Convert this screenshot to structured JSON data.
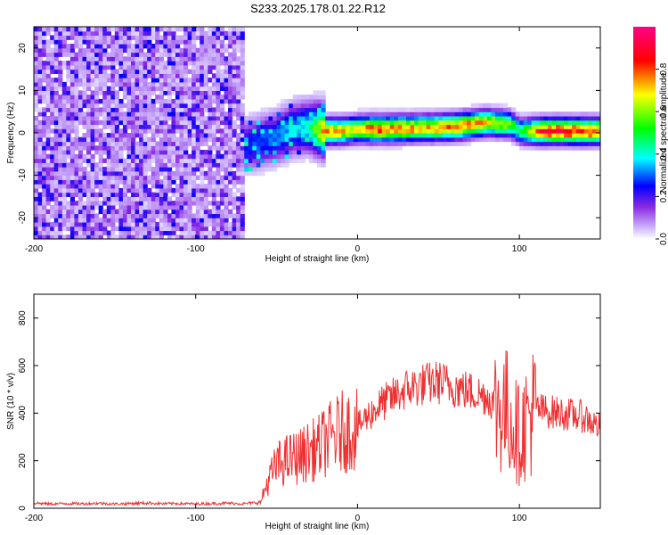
{
  "figure_title": "S233.2025.178.01.22.R12",
  "chart_data": [
    {
      "type": "heatmap",
      "title": "S233.2025.178.01.22.R12",
      "xlabel": "Height of straight line (km)",
      "ylabel": "Frequency (Hz)",
      "xlim": [
        -200,
        150
      ],
      "ylim": [
        -25,
        25
      ],
      "xticks": [
        -200,
        -100,
        0,
        100
      ],
      "yticks": [
        -20,
        -10,
        0,
        10,
        20
      ],
      "colorbar": {
        "label": "Normalized spectral amplitude",
        "range": [
          0,
          1
        ],
        "ticks": [
          0.0,
          0.2,
          0.4,
          0.6,
          0.8
        ],
        "tick_labels": [
          "0.0",
          "0.2",
          "0.4",
          "0.6",
          "0.8"
        ],
        "colormap": "white-purple-blue-cyan-green-yellow-red-magenta"
      },
      "features": {
        "noise_region_x": [
          -200,
          -70
        ],
        "noise_amplitude": [
          0.05,
          0.25
        ],
        "signal_band_center_hz": [
          [
            -70,
            -3
          ],
          [
            -60,
            -2
          ],
          [
            -50,
            -1
          ],
          [
            -40,
            1
          ],
          [
            -30,
            1.5
          ],
          [
            -20,
            0.5
          ],
          [
            -10,
            0.5
          ],
          [
            0,
            1
          ],
          [
            20,
            1
          ],
          [
            40,
            1.2
          ],
          [
            60,
            1.5
          ],
          [
            80,
            2.5
          ],
          [
            95,
            2
          ],
          [
            100,
            0.5
          ],
          [
            110,
            0.5
          ],
          [
            130,
            0.5
          ],
          [
            150,
            0.5
          ]
        ],
        "signal_peak_amplitude": [
          [
            -70,
            0.3
          ],
          [
            -50,
            0.35
          ],
          [
            -30,
            0.45
          ],
          [
            -20,
            0.85
          ],
          [
            0,
            0.75
          ],
          [
            10,
            0.9
          ],
          [
            40,
            0.8
          ],
          [
            70,
            0.85
          ],
          [
            90,
            0.7
          ],
          [
            100,
            0.5
          ],
          [
            115,
            0.95
          ],
          [
            135,
            0.95
          ],
          [
            150,
            0.9
          ]
        ]
      },
      "grid": false,
      "legend": "colorbar-right"
    },
    {
      "type": "line",
      "xlabel": "Height of straight line (km)",
      "ylabel": "SNR (10 * v/v)",
      "xlim": [
        -200,
        150
      ],
      "ylim": [
        0,
        900
      ],
      "xticks": [
        -200,
        -100,
        0,
        100
      ],
      "yticks": [
        0,
        200,
        400,
        600,
        800
      ],
      "series": [
        {
          "color": "#ef3030",
          "x": [
            -200,
            -190,
            -180,
            -170,
            -160,
            -150,
            -140,
            -130,
            -120,
            -110,
            -100,
            -90,
            -80,
            -70,
            -60,
            -55,
            -50,
            -45,
            -40,
            -35,
            -30,
            -25,
            -20,
            -15,
            -10,
            -5,
            0,
            5,
            10,
            15,
            20,
            25,
            30,
            35,
            40,
            45,
            50,
            55,
            60,
            65,
            70,
            75,
            80,
            85,
            90,
            95,
            100,
            105,
            110,
            115,
            120,
            125,
            130,
            135,
            140,
            145,
            150
          ],
          "values": [
            22,
            18,
            20,
            19,
            21,
            18,
            20,
            22,
            19,
            20,
            18,
            20,
            21,
            19,
            25,
            120,
            180,
            200,
            210,
            220,
            240,
            250,
            280,
            300,
            320,
            330,
            340,
            380,
            410,
            440,
            460,
            480,
            500,
            510,
            520,
            525,
            530,
            520,
            510,
            500,
            490,
            480,
            470,
            440,
            420,
            380,
            300,
            380,
            420,
            410,
            405,
            400,
            395,
            390,
            385,
            360,
            340
          ]
        }
      ],
      "grid": false,
      "legend": "none"
    }
  ]
}
